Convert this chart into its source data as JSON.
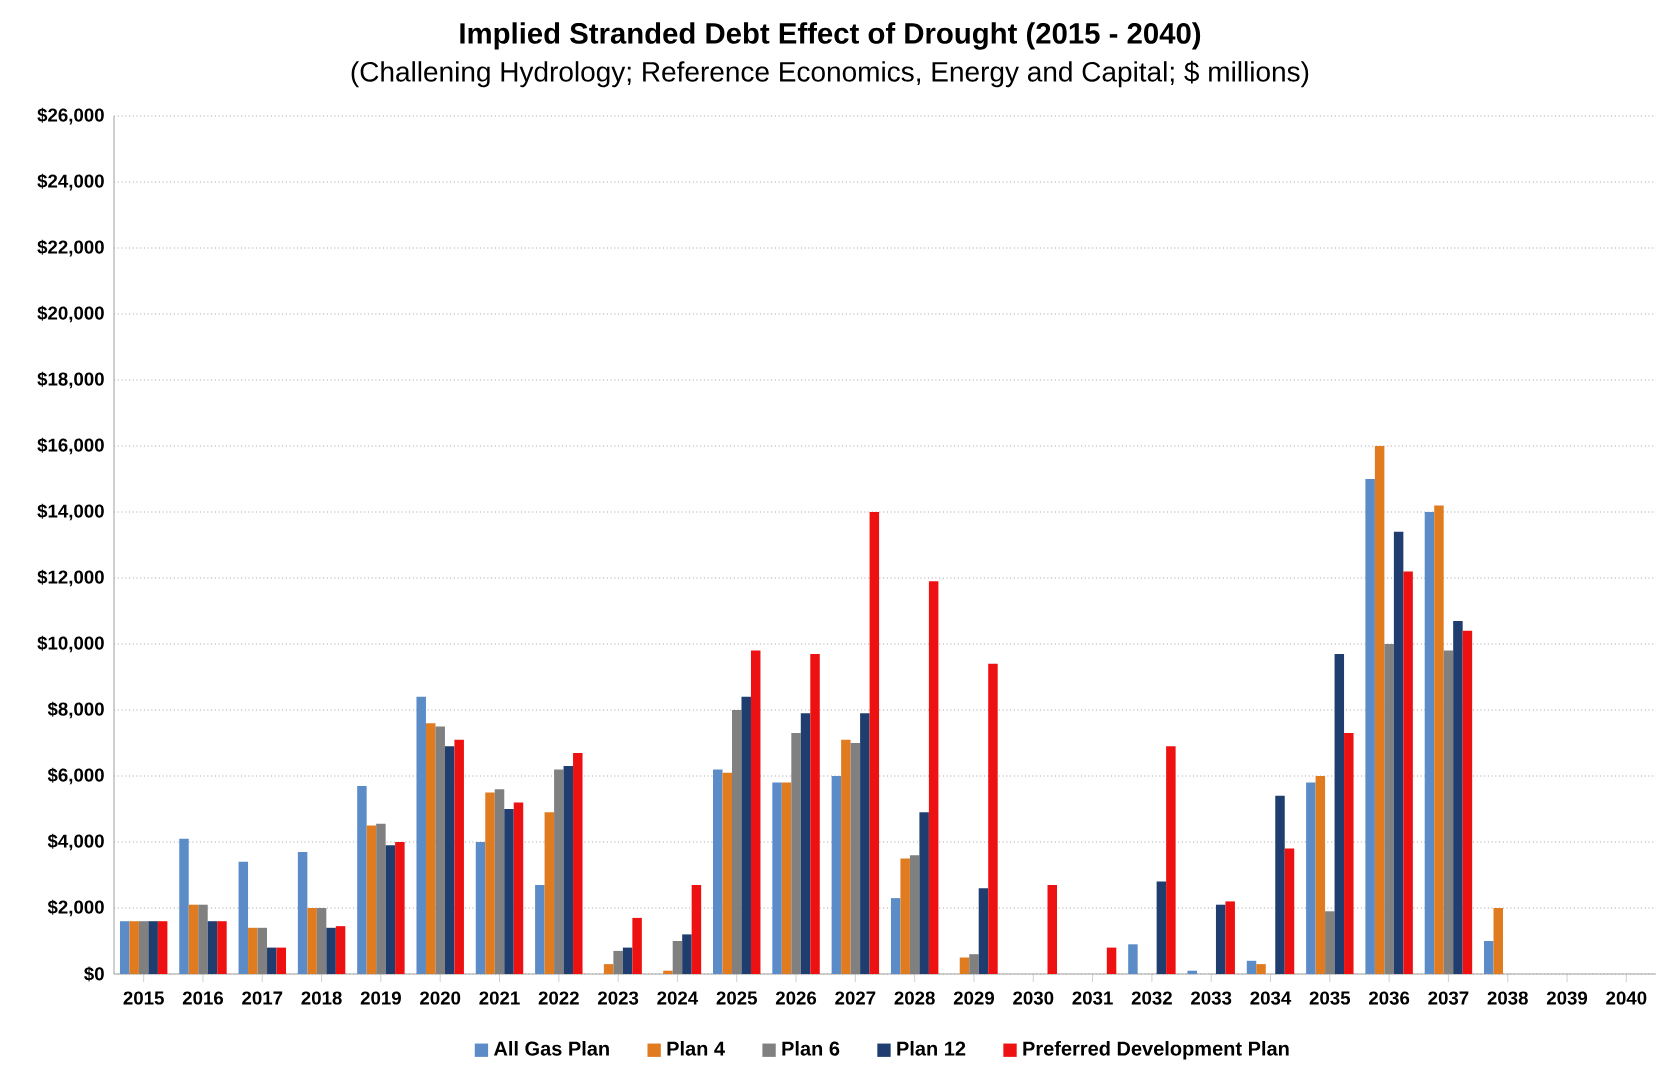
{
  "chart_data": {
    "type": "bar",
    "title": "Implied Stranded Debt Effect of Drought (2015 - 2040)",
    "subtitle": "(Challening Hydrology; Reference Economics, Energy and Capital; $ millions)",
    "categories": [
      "2015",
      "2016",
      "2017",
      "2018",
      "2019",
      "2020",
      "2021",
      "2022",
      "2023",
      "2024",
      "2025",
      "2026",
      "2027",
      "2028",
      "2029",
      "2030",
      "2031",
      "2032",
      "2033",
      "2034",
      "2035",
      "2036",
      "2037",
      "2038",
      "2039",
      "2040"
    ],
    "series": [
      {
        "name": "All Gas Plan",
        "color": "#5b8cc8",
        "values": [
          1600,
          4100,
          3400,
          3700,
          5700,
          8400,
          4000,
          2700,
          0,
          0,
          6200,
          5800,
          6000,
          2300,
          0,
          0,
          0,
          900,
          100,
          400,
          5800,
          15000,
          14000,
          1000,
          0,
          0
        ]
      },
      {
        "name": "Plan 4",
        "color": "#e07b20",
        "values": [
          1600,
          2100,
          1400,
          2000,
          4500,
          7600,
          5500,
          4900,
          300,
          100,
          6100,
          5800,
          7100,
          3500,
          500,
          0,
          0,
          0,
          0,
          300,
          6000,
          16000,
          14200,
          2000,
          0,
          0
        ]
      },
      {
        "name": "Plan 6",
        "color": "#808080",
        "values": [
          1600,
          2100,
          1400,
          2000,
          4550,
          7500,
          5600,
          6200,
          700,
          1000,
          8000,
          7300,
          7000,
          3600,
          600,
          0,
          0,
          0,
          0,
          0,
          1900,
          10000,
          9800,
          0,
          0,
          0
        ]
      },
      {
        "name": "Plan 12",
        "color": "#1f3d6e",
        "values": [
          1600,
          1600,
          800,
          1400,
          3900,
          6900,
          5000,
          6300,
          800,
          1200,
          8400,
          7900,
          7900,
          4900,
          2600,
          0,
          0,
          2800,
          2100,
          5400,
          9700,
          13400,
          10700,
          0,
          0,
          0
        ]
      },
      {
        "name": "Preferred Development Plan",
        "color": "#ee1111",
        "values": [
          1600,
          1600,
          800,
          1450,
          4000,
          7100,
          5200,
          6700,
          1700,
          2700,
          9800,
          9700,
          14000,
          11900,
          9400,
          2700,
          800,
          6900,
          2200,
          3800,
          7300,
          12200,
          10400,
          0,
          0,
          0
        ]
      }
    ],
    "ylim": [
      0,
      26000
    ],
    "yticks": [
      {
        "value": 0,
        "label": "$0"
      },
      {
        "value": 2000,
        "label": "$2,000"
      },
      {
        "value": 4000,
        "label": "$4,000"
      },
      {
        "value": 6000,
        "label": "$6,000"
      },
      {
        "value": 8000,
        "label": "$8,000"
      },
      {
        "value": 10000,
        "label": "$10,000"
      },
      {
        "value": 12000,
        "label": "$12,000"
      },
      {
        "value": 14000,
        "label": "$14,000"
      },
      {
        "value": 16000,
        "label": "$16,000"
      },
      {
        "value": 18000,
        "label": "$18,000"
      },
      {
        "value": 20000,
        "label": "$20,000"
      },
      {
        "value": 22000,
        "label": "$22,000"
      },
      {
        "value": 24000,
        "label": "$24,000"
      },
      {
        "value": 26000,
        "label": "$26,000"
      }
    ],
    "grid": "y",
    "legend": "bottom"
  }
}
